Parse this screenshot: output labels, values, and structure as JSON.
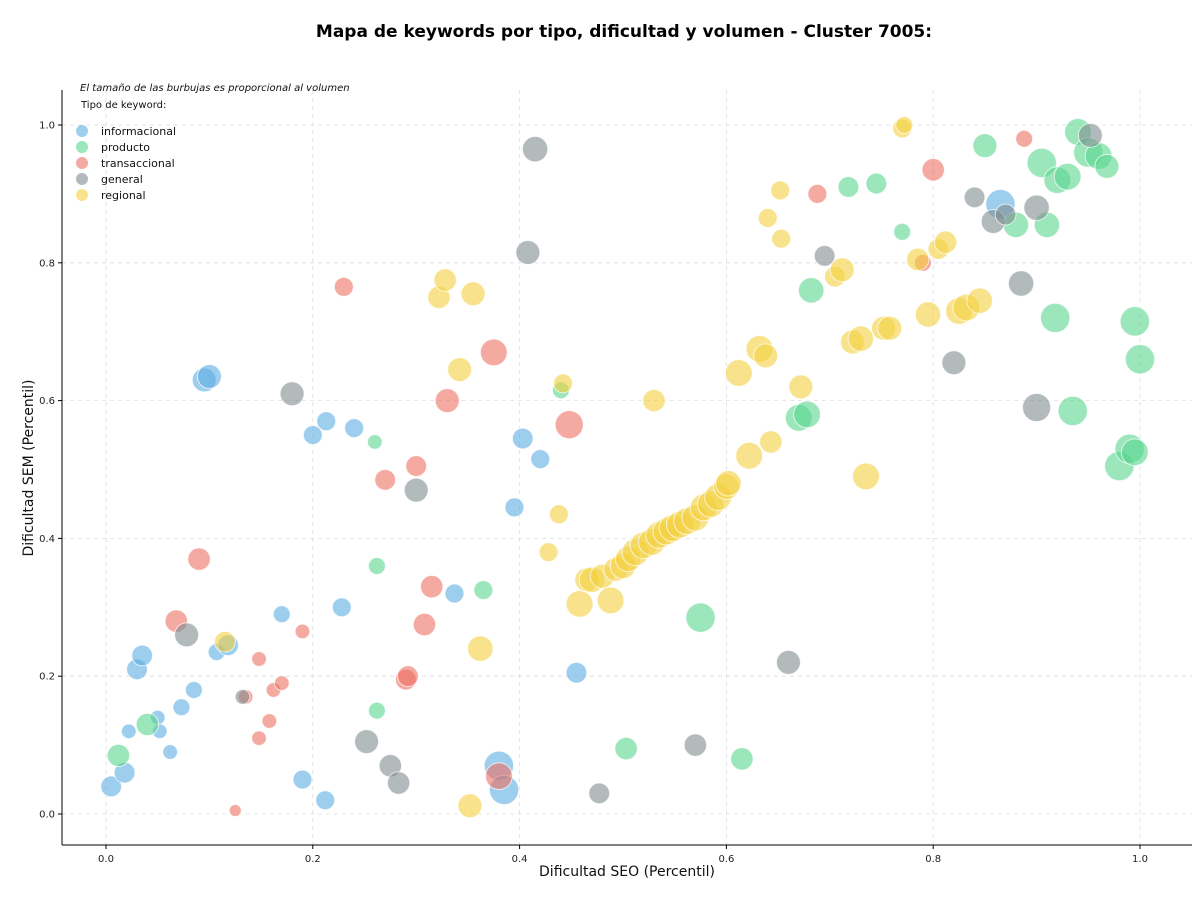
{
  "chart_data": {
    "type": "scatter",
    "title": "Mapa de keywords por tipo, dificultad y volumen - Cluster 7005:",
    "xlabel": "Dificultad SEO (Percentil)",
    "ylabel": "Dificultad SEM (Percentil)",
    "xlim": [
      -0.045,
      1.05
    ],
    "ylim": [
      -0.045,
      1.05
    ],
    "xticks": [
      "0.0",
      "0.2",
      "0.4",
      "0.6",
      "0.8",
      "1.0"
    ],
    "yticks": [
      "0.0",
      "0.2",
      "0.4",
      "0.6",
      "0.8",
      "1.0"
    ],
    "grid": true,
    "legend_placement": "top-left",
    "note": "El tamaño de las burbujas es proporcional al volumen",
    "legend_title": "Tipo de keyword:",
    "series": [
      {
        "name": "informacional",
        "color": "#5dade2",
        "points": [
          [
            0.005,
            0.04,
            3
          ],
          [
            0.018,
            0.06,
            3
          ],
          [
            0.022,
            0.12,
            1.5
          ],
          [
            0.03,
            0.21,
            3
          ],
          [
            0.035,
            0.23,
            3
          ],
          [
            0.05,
            0.14,
            1.5
          ],
          [
            0.052,
            0.12,
            1.5
          ],
          [
            0.062,
            0.09,
            1.5
          ],
          [
            0.073,
            0.155,
            2
          ],
          [
            0.085,
            0.18,
            2
          ],
          [
            0.095,
            0.63,
            4
          ],
          [
            0.1,
            0.635,
            4
          ],
          [
            0.107,
            0.235,
            2
          ],
          [
            0.118,
            0.245,
            3
          ],
          [
            0.17,
            0.29,
            2
          ],
          [
            0.19,
            0.05,
            2.5
          ],
          [
            0.2,
            0.55,
            2.5
          ],
          [
            0.212,
            0.02,
            2.5
          ],
          [
            0.213,
            0.57,
            2.5
          ],
          [
            0.228,
            0.3,
            2.5
          ],
          [
            0.24,
            0.56,
            2.5
          ],
          [
            0.337,
            0.32,
            2.5
          ],
          [
            0.38,
            0.07,
            6
          ],
          [
            0.385,
            0.035,
            6
          ],
          [
            0.395,
            0.445,
            2.5
          ],
          [
            0.403,
            0.545,
            3
          ],
          [
            0.42,
            0.515,
            2.5
          ],
          [
            0.455,
            0.205,
            3
          ],
          [
            0.865,
            0.885,
            6
          ]
        ]
      },
      {
        "name": "producto",
        "color": "#58d68d",
        "points": [
          [
            0.012,
            0.085,
            3.5
          ],
          [
            0.04,
            0.13,
            3.5
          ],
          [
            0.26,
            0.54,
            1.5
          ],
          [
            0.262,
            0.36,
            2
          ],
          [
            0.262,
            0.15,
            2
          ],
          [
            0.365,
            0.325,
            2.5
          ],
          [
            0.44,
            0.615,
            2
          ],
          [
            0.503,
            0.095,
            3.5
          ],
          [
            0.575,
            0.285,
            6
          ],
          [
            0.615,
            0.08,
            3.5
          ],
          [
            0.67,
            0.575,
            5
          ],
          [
            0.678,
            0.58,
            5
          ],
          [
            0.682,
            0.76,
            4.5
          ],
          [
            0.718,
            0.91,
            3
          ],
          [
            0.745,
            0.915,
            3
          ],
          [
            0.77,
            0.845,
            2
          ],
          [
            0.85,
            0.97,
            4
          ],
          [
            0.88,
            0.855,
            4.5
          ],
          [
            0.91,
            0.855,
            4.5
          ],
          [
            0.905,
            0.945,
            6
          ],
          [
            0.92,
            0.92,
            5
          ],
          [
            0.93,
            0.925,
            5
          ],
          [
            0.918,
            0.72,
            6
          ],
          [
            0.935,
            0.585,
            6
          ],
          [
            0.94,
            0.99,
            5
          ],
          [
            0.95,
            0.96,
            6
          ],
          [
            0.96,
            0.955,
            5
          ],
          [
            0.968,
            0.94,
            4
          ],
          [
            0.98,
            0.505,
            6
          ],
          [
            0.99,
            0.53,
            6
          ],
          [
            0.995,
            0.525,
            5
          ],
          [
            0.995,
            0.715,
            6
          ],
          [
            1.0,
            0.66,
            6
          ]
        ]
      },
      {
        "name": "transaccional",
        "color": "#ec7063",
        "points": [
          [
            0.068,
            0.28,
            3.5
          ],
          [
            0.09,
            0.37,
            3.5
          ],
          [
            0.125,
            0.005,
            1
          ],
          [
            0.135,
            0.17,
            1.5
          ],
          [
            0.148,
            0.225,
            1.5
          ],
          [
            0.148,
            0.11,
            1.5
          ],
          [
            0.158,
            0.135,
            1.5
          ],
          [
            0.162,
            0.18,
            1.5
          ],
          [
            0.17,
            0.19,
            1.5
          ],
          [
            0.19,
            0.265,
            1.5
          ],
          [
            0.23,
            0.765,
            2.5
          ],
          [
            0.27,
            0.485,
            3
          ],
          [
            0.29,
            0.195,
            3
          ],
          [
            0.292,
            0.2,
            3
          ],
          [
            0.3,
            0.505,
            3
          ],
          [
            0.308,
            0.275,
            3.5
          ],
          [
            0.315,
            0.33,
            3.5
          ],
          [
            0.33,
            0.6,
            4
          ],
          [
            0.375,
            0.67,
            5
          ],
          [
            0.38,
            0.055,
            5
          ],
          [
            0.448,
            0.565,
            5.5
          ],
          [
            0.688,
            0.9,
            2.5
          ],
          [
            0.79,
            0.8,
            2
          ],
          [
            0.8,
            0.935,
            3.5
          ],
          [
            0.888,
            0.98,
            2
          ]
        ]
      },
      {
        "name": "general",
        "color": "#7f8c8d",
        "points": [
          [
            0.078,
            0.26,
            4
          ],
          [
            0.132,
            0.17,
            1.5
          ],
          [
            0.18,
            0.61,
            4
          ],
          [
            0.252,
            0.105,
            4
          ],
          [
            0.275,
            0.07,
            3.5
          ],
          [
            0.283,
            0.045,
            3.5
          ],
          [
            0.3,
            0.47,
            4
          ],
          [
            0.408,
            0.815,
            4
          ],
          [
            0.415,
            0.965,
            4.5
          ],
          [
            0.477,
            0.03,
            3
          ],
          [
            0.57,
            0.1,
            3.5
          ],
          [
            0.66,
            0.22,
            4
          ],
          [
            0.695,
            0.81,
            3
          ],
          [
            0.82,
            0.655,
            4
          ],
          [
            0.84,
            0.895,
            3
          ],
          [
            0.858,
            0.86,
            4
          ],
          [
            0.87,
            0.87,
            3
          ],
          [
            0.885,
            0.77,
            4.5
          ],
          [
            0.9,
            0.88,
            4.5
          ],
          [
            0.9,
            0.59,
            5.5
          ],
          [
            0.952,
            0.985,
            4
          ]
        ]
      },
      {
        "name": "regional",
        "color": "#f4d03f",
        "points": [
          [
            0.115,
            0.25,
            3
          ],
          [
            0.322,
            0.75,
            3.5
          ],
          [
            0.328,
            0.775,
            3.5
          ],
          [
            0.342,
            0.645,
            4
          ],
          [
            0.352,
            0.012,
            4
          ],
          [
            0.355,
            0.755,
            4
          ],
          [
            0.362,
            0.24,
            4.5
          ],
          [
            0.428,
            0.38,
            2.5
          ],
          [
            0.438,
            0.435,
            2.5
          ],
          [
            0.442,
            0.625,
            2.5
          ],
          [
            0.458,
            0.305,
            5
          ],
          [
            0.465,
            0.34,
            4
          ],
          [
            0.47,
            0.34,
            4.5
          ],
          [
            0.48,
            0.345,
            4
          ],
          [
            0.488,
            0.31,
            5
          ],
          [
            0.493,
            0.355,
            4
          ],
          [
            0.5,
            0.36,
            4.5
          ],
          [
            0.505,
            0.37,
            4.5
          ],
          [
            0.512,
            0.38,
            5
          ],
          [
            0.52,
            0.39,
            5
          ],
          [
            0.528,
            0.395,
            5
          ],
          [
            0.53,
            0.6,
            3.5
          ],
          [
            0.535,
            0.405,
            5
          ],
          [
            0.542,
            0.41,
            5
          ],
          [
            0.548,
            0.415,
            5
          ],
          [
            0.555,
            0.42,
            5
          ],
          [
            0.562,
            0.425,
            5
          ],
          [
            0.57,
            0.43,
            5
          ],
          [
            0.578,
            0.445,
            5
          ],
          [
            0.585,
            0.45,
            5
          ],
          [
            0.592,
            0.46,
            5
          ],
          [
            0.6,
            0.475,
            4.5
          ],
          [
            0.602,
            0.48,
            4.5
          ],
          [
            0.612,
            0.64,
            5
          ],
          [
            0.622,
            0.52,
            5
          ],
          [
            0.632,
            0.675,
            5
          ],
          [
            0.638,
            0.665,
            4
          ],
          [
            0.643,
            0.54,
            3.5
          ],
          [
            0.64,
            0.865,
            2.5
          ],
          [
            0.652,
            0.905,
            2.5
          ],
          [
            0.653,
            0.835,
            2.5
          ],
          [
            0.672,
            0.62,
            4
          ],
          [
            0.705,
            0.78,
            3
          ],
          [
            0.712,
            0.79,
            4
          ],
          [
            0.722,
            0.685,
            4
          ],
          [
            0.73,
            0.69,
            4.5
          ],
          [
            0.735,
            0.49,
            5
          ],
          [
            0.752,
            0.705,
            4
          ],
          [
            0.758,
            0.705,
            4
          ],
          [
            0.77,
            0.995,
            2.5
          ],
          [
            0.772,
            1.0,
            2
          ],
          [
            0.785,
            0.805,
            3.5
          ],
          [
            0.795,
            0.725,
            4.5
          ],
          [
            0.805,
            0.82,
            3
          ],
          [
            0.812,
            0.83,
            3.5
          ],
          [
            0.825,
            0.73,
            5
          ],
          [
            0.832,
            0.735,
            5
          ],
          [
            0.845,
            0.745,
            4.5
          ]
        ]
      }
    ]
  }
}
